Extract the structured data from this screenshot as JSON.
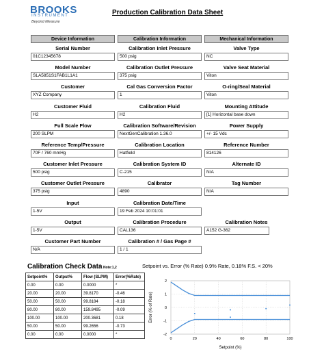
{
  "logo": {
    "name": "BROOKS",
    "sub": "INSTRUMENT",
    "tagline": "Beyond Measure"
  },
  "title": "Production Calibration Data Sheet",
  "columns": [
    {
      "header": "Device Information",
      "fields": [
        {
          "label": "Serial Number",
          "value": "01C12345678"
        },
        {
          "label": "Model Number",
          "value": "SLA5851S1FAB1L1A1"
        },
        {
          "label": "Customer",
          "value": "XYZ Company"
        },
        {
          "label": "Customer Fluid",
          "value": "H2"
        },
        {
          "label": "Full Scale Flow",
          "value": "200 SLPM"
        },
        {
          "label": "Reference Temp/Pressure",
          "value": "70F / 760 mmHg"
        },
        {
          "label": "Customer Inlet Pressure",
          "value": "500 psig"
        },
        {
          "label": "Customer Outlet Pressure",
          "value": "375 psig"
        },
        {
          "label": "Input",
          "value": "1-5V"
        },
        {
          "label": "Output",
          "value": "1-5V"
        },
        {
          "label": "Customer Part Number",
          "value": "N/A"
        }
      ]
    },
    {
      "header": "Calibration Information",
      "fields": [
        {
          "label": "Calibration Inlet Pressure",
          "value": "500 psig"
        },
        {
          "label": "Calibration Outlet Pressure",
          "value": "375 psig"
        },
        {
          "label": "Cal Gas Conversion Factor",
          "value": "1"
        },
        {
          "label": "Calibration Fluid",
          "value": "H2"
        },
        {
          "label": "Calibration Software/Revision",
          "value": "NextGenCalibration 1.36.0"
        },
        {
          "label": "Calibration Location",
          "value": "Hatfield"
        },
        {
          "label": "Calibration System ID",
          "value": "C-215"
        },
        {
          "label": "Calibrator",
          "value": "4890"
        },
        {
          "label": "Calibration Date/Time",
          "value": "19 Feb 2024 10:01:01"
        },
        {
          "label": "Calibration Procedure",
          "value": "CAL136"
        },
        {
          "label": "Calibration # / Gas Page #",
          "value": "1 / 1"
        }
      ]
    },
    {
      "header": "Mechanical Information",
      "fields": [
        {
          "label": "Valve Type",
          "value": "NC"
        },
        {
          "label": "Valve Seat Material",
          "value": "Viton"
        },
        {
          "label": "O-ring/Seal Material",
          "value": "Viton"
        },
        {
          "label": "Mounting Attitude",
          "value": "[1] Horizontal base down"
        },
        {
          "label": "Power Supply",
          "value": "+/- 15 Vdc"
        },
        {
          "label": "Reference Number",
          "value": "814126"
        },
        {
          "label": "Alternate ID",
          "value": "N/A"
        },
        {
          "label": "Tag Number",
          "value": "N/A"
        },
        {
          "label": "",
          "value": ""
        },
        {
          "label": "Calibration Notes",
          "value": "A152 G-362"
        },
        {
          "label": "",
          "value": ""
        }
      ]
    }
  ],
  "check_data": {
    "title": "Calibration Check Data",
    "note": "Note:1,2",
    "headers": [
      "Setpoint%",
      "Output%",
      "Flow (SLPM)",
      "Error(%Rate)"
    ],
    "rows": [
      [
        "0.00",
        "0.00",
        "0.0000",
        "*"
      ],
      [
        "20.00",
        "20.00",
        "39.8170",
        "-0.46"
      ],
      [
        "50.00",
        "50.00",
        "99.8184",
        "-0.18"
      ],
      [
        "80.00",
        "80.00",
        "159.8495",
        "-0.09"
      ],
      [
        "100.00",
        "100.00",
        "200.3681",
        "0.18"
      ],
      [
        "50.00",
        "50.00",
        "99.2656",
        "-0.73"
      ],
      [
        "0.00",
        "0.00",
        "0.0000",
        "*"
      ]
    ]
  },
  "chart_data": {
    "type": "scatter",
    "title": "Setpoint vs. Error (% Rate)  0.9% Rate, 0.18% F.S. < 20%",
    "xlabel": "Setpoint (%)",
    "ylabel": "Error (% of Rate)",
    "xlim": [
      0,
      100
    ],
    "ylim": [
      -2,
      2
    ],
    "xticks": [
      0,
      20,
      40,
      60,
      80,
      100
    ],
    "yticks": [
      -2,
      -1,
      0,
      1,
      2
    ],
    "grid": true,
    "points": [
      {
        "x": 20,
        "y": -0.46
      },
      {
        "x": 50,
        "y": -0.18
      },
      {
        "x": 80,
        "y": -0.09
      },
      {
        "x": 100,
        "y": 0.18
      },
      {
        "x": 50,
        "y": -0.73
      }
    ],
    "tolerance_upper": [
      [
        0,
        1.9
      ],
      [
        5,
        1.6
      ],
      [
        10,
        1.3
      ],
      [
        15,
        1.05
      ],
      [
        20,
        0.9
      ],
      [
        100,
        0.9
      ]
    ],
    "tolerance_lower": [
      [
        0,
        -1.9
      ],
      [
        5,
        -1.6
      ],
      [
        10,
        -1.3
      ],
      [
        15,
        -1.05
      ],
      [
        20,
        -0.9
      ],
      [
        100,
        -0.9
      ]
    ],
    "colors": {
      "band": "#4a90d9",
      "points": "#4a90d9"
    }
  }
}
